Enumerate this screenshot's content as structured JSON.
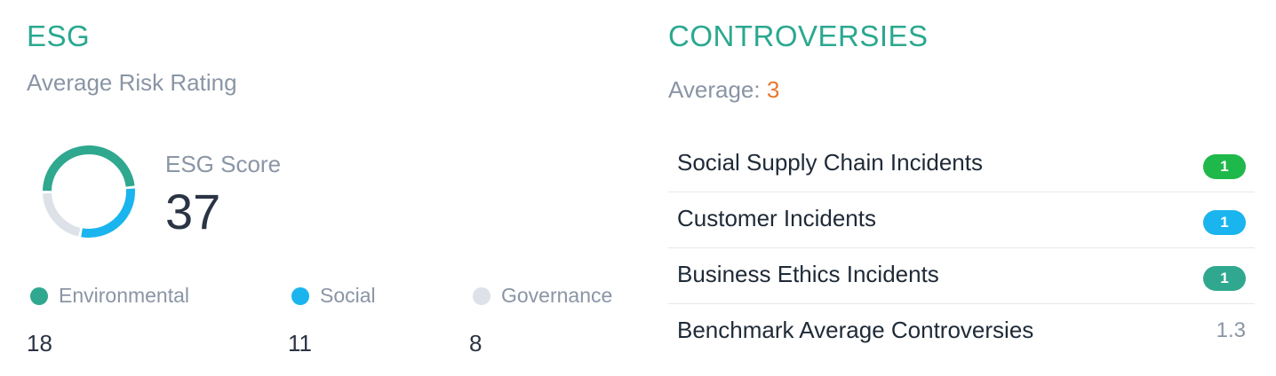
{
  "esg": {
    "title": "ESG",
    "subtitle": "Average Risk Rating",
    "score_label": "ESG Score",
    "score_value": "37",
    "segments": [
      {
        "name": "Environmental",
        "value": "18",
        "color": "#2fa88f"
      },
      {
        "name": "Social",
        "value": "11",
        "color": "#1ab5ee"
      },
      {
        "name": "Governance",
        "value": "8",
        "color": "#dde2e8"
      }
    ]
  },
  "controversies": {
    "title": "CONTROVERSIES",
    "average_label": "Average:",
    "average_value": "3",
    "incidents": [
      {
        "label": "Social Supply Chain Incidents",
        "count": "1",
        "color": "#1fb84a"
      },
      {
        "label": "Customer Incidents",
        "count": "1",
        "color": "#1ab5ee"
      },
      {
        "label": "Business Ethics Incidents",
        "count": "1",
        "color": "#2fa88f"
      }
    ],
    "benchmark": {
      "label": "Benchmark Average Controversies",
      "value": "1.3"
    }
  }
}
